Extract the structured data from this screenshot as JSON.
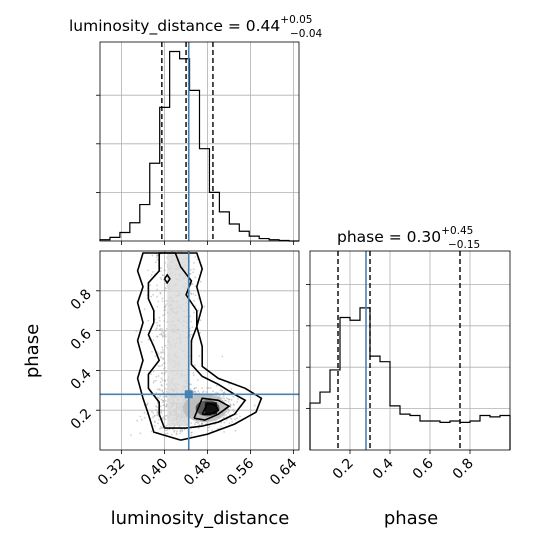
{
  "chart_data": {
    "type": "corner",
    "parameters": [
      "luminosity_distance",
      "phase"
    ],
    "axis_labels": {
      "x_bottom_left": "luminosity_distance",
      "x_bottom_right": "phase",
      "y_left": "phase"
    },
    "colors": {
      "truth": "#4682b4",
      "contour": "#000000",
      "grid": "#b0b0b0",
      "points": "#a9a9a9"
    },
    "titles": [
      {
        "param": "luminosity_distance",
        "label": "luminosity_distance = 0.44",
        "plus": "+0.05",
        "minus": "−0.04"
      },
      {
        "param": "phase",
        "label": "phase = 0.30",
        "plus": "+0.45",
        "minus": "−0.15"
      }
    ],
    "luminosity_distance": {
      "range": [
        0.28,
        0.65
      ],
      "ticks": [
        0.32,
        0.4,
        0.48,
        0.56,
        0.64
      ],
      "tick_labels": [
        "0.32",
        "0.40",
        "0.48",
        "0.56",
        "0.64"
      ],
      "truth": 0.445,
      "quantiles": [
        0.395,
        0.44,
        0.49
      ],
      "hist_edges": [
        0.28,
        0.2985,
        0.317,
        0.3355,
        0.354,
        0.3725,
        0.391,
        0.4095,
        0.428,
        0.4465,
        0.465,
        0.4835,
        0.502,
        0.5205,
        0.539,
        0.5575,
        0.576,
        0.5945,
        0.613,
        0.6315,
        0.65
      ],
      "hist_counts": [
        0.5,
        1.5,
        3.5,
        7.5,
        15,
        32,
        55,
        78,
        75,
        62,
        38,
        20,
        12,
        7,
        4,
        2,
        1,
        0.5,
        0.2,
        0
      ]
    },
    "phase": {
      "range": [
        0.0,
        1.0
      ],
      "ticks": [
        0.2,
        0.4,
        0.6,
        0.8
      ],
      "tick_labels": [
        "0.2",
        "0.4",
        "0.6",
        "0.8"
      ],
      "truth": 0.28,
      "quantiles": [
        0.14,
        0.3,
        0.75
      ],
      "hist_edges": [
        0.0,
        0.05,
        0.1,
        0.15,
        0.2,
        0.25,
        0.3,
        0.35,
        0.4,
        0.45,
        0.5,
        0.55,
        0.6,
        0.65,
        0.7,
        0.75,
        0.8,
        0.85,
        0.9,
        0.95,
        1.0
      ],
      "hist_counts": [
        34,
        42,
        58,
        96,
        94,
        103,
        68,
        64,
        32,
        26,
        25,
        21,
        21,
        20,
        21,
        20,
        21,
        25,
        24,
        25
      ]
    },
    "joint": {
      "truth_point": [
        0.445,
        0.28
      ],
      "contours": [
        [
          [
            0.4,
            0.11
          ],
          [
            0.39,
            0.18
          ],
          [
            0.39,
            0.24
          ],
          [
            0.37,
            0.31
          ],
          [
            0.37,
            0.38
          ],
          [
            0.39,
            0.45
          ],
          [
            0.38,
            0.52
          ],
          [
            0.37,
            0.58
          ],
          [
            0.38,
            0.64
          ],
          [
            0.38,
            0.7
          ],
          [
            0.37,
            0.76
          ],
          [
            0.37,
            0.84
          ],
          [
            0.39,
            0.9
          ],
          [
            0.39,
            0.99
          ],
          [
            0.42,
            0.99
          ],
          [
            0.43,
            0.92
          ],
          [
            0.45,
            0.85
          ],
          [
            0.44,
            0.78
          ],
          [
            0.46,
            0.7
          ],
          [
            0.46,
            0.62
          ],
          [
            0.45,
            0.55
          ],
          [
            0.45,
            0.48
          ],
          [
            0.45,
            0.43
          ],
          [
            0.47,
            0.37
          ],
          [
            0.5,
            0.33
          ],
          [
            0.53,
            0.28
          ],
          [
            0.55,
            0.25
          ],
          [
            0.53,
            0.18
          ],
          [
            0.5,
            0.14
          ],
          [
            0.47,
            0.12
          ],
          [
            0.44,
            0.11
          ],
          [
            0.4,
            0.11
          ]
        ],
        [
          [
            0.43,
            0.05
          ],
          [
            0.38,
            0.09
          ],
          [
            0.37,
            0.18
          ],
          [
            0.36,
            0.26
          ],
          [
            0.35,
            0.36
          ],
          [
            0.36,
            0.45
          ],
          [
            0.35,
            0.55
          ],
          [
            0.36,
            0.64
          ],
          [
            0.35,
            0.74
          ],
          [
            0.36,
            0.82
          ],
          [
            0.35,
            0.9
          ],
          [
            0.36,
            0.99
          ],
          [
            0.46,
            0.99
          ],
          [
            0.47,
            0.91
          ],
          [
            0.46,
            0.82
          ],
          [
            0.47,
            0.72
          ],
          [
            0.46,
            0.62
          ],
          [
            0.47,
            0.52
          ],
          [
            0.47,
            0.42
          ],
          [
            0.5,
            0.36
          ],
          [
            0.55,
            0.31
          ],
          [
            0.58,
            0.26
          ],
          [
            0.57,
            0.19
          ],
          [
            0.53,
            0.13
          ],
          [
            0.48,
            0.08
          ],
          [
            0.43,
            0.05
          ]
        ],
        [
          [
            0.455,
            0.16
          ],
          [
            0.47,
            0.26
          ],
          [
            0.5,
            0.25
          ],
          [
            0.52,
            0.22
          ],
          [
            0.5,
            0.18
          ],
          [
            0.475,
            0.15
          ],
          [
            0.455,
            0.16
          ]
        ],
        [
          [
            0.47,
            0.18
          ],
          [
            0.48,
            0.235
          ],
          [
            0.495,
            0.225
          ],
          [
            0.5,
            0.2
          ],
          [
            0.485,
            0.18
          ],
          [
            0.47,
            0.18
          ]
        ],
        [
          [
            0.4,
            0.86
          ],
          [
            0.405,
            0.88
          ],
          [
            0.41,
            0.86
          ],
          [
            0.405,
            0.84
          ],
          [
            0.4,
            0.86
          ]
        ]
      ]
    }
  }
}
